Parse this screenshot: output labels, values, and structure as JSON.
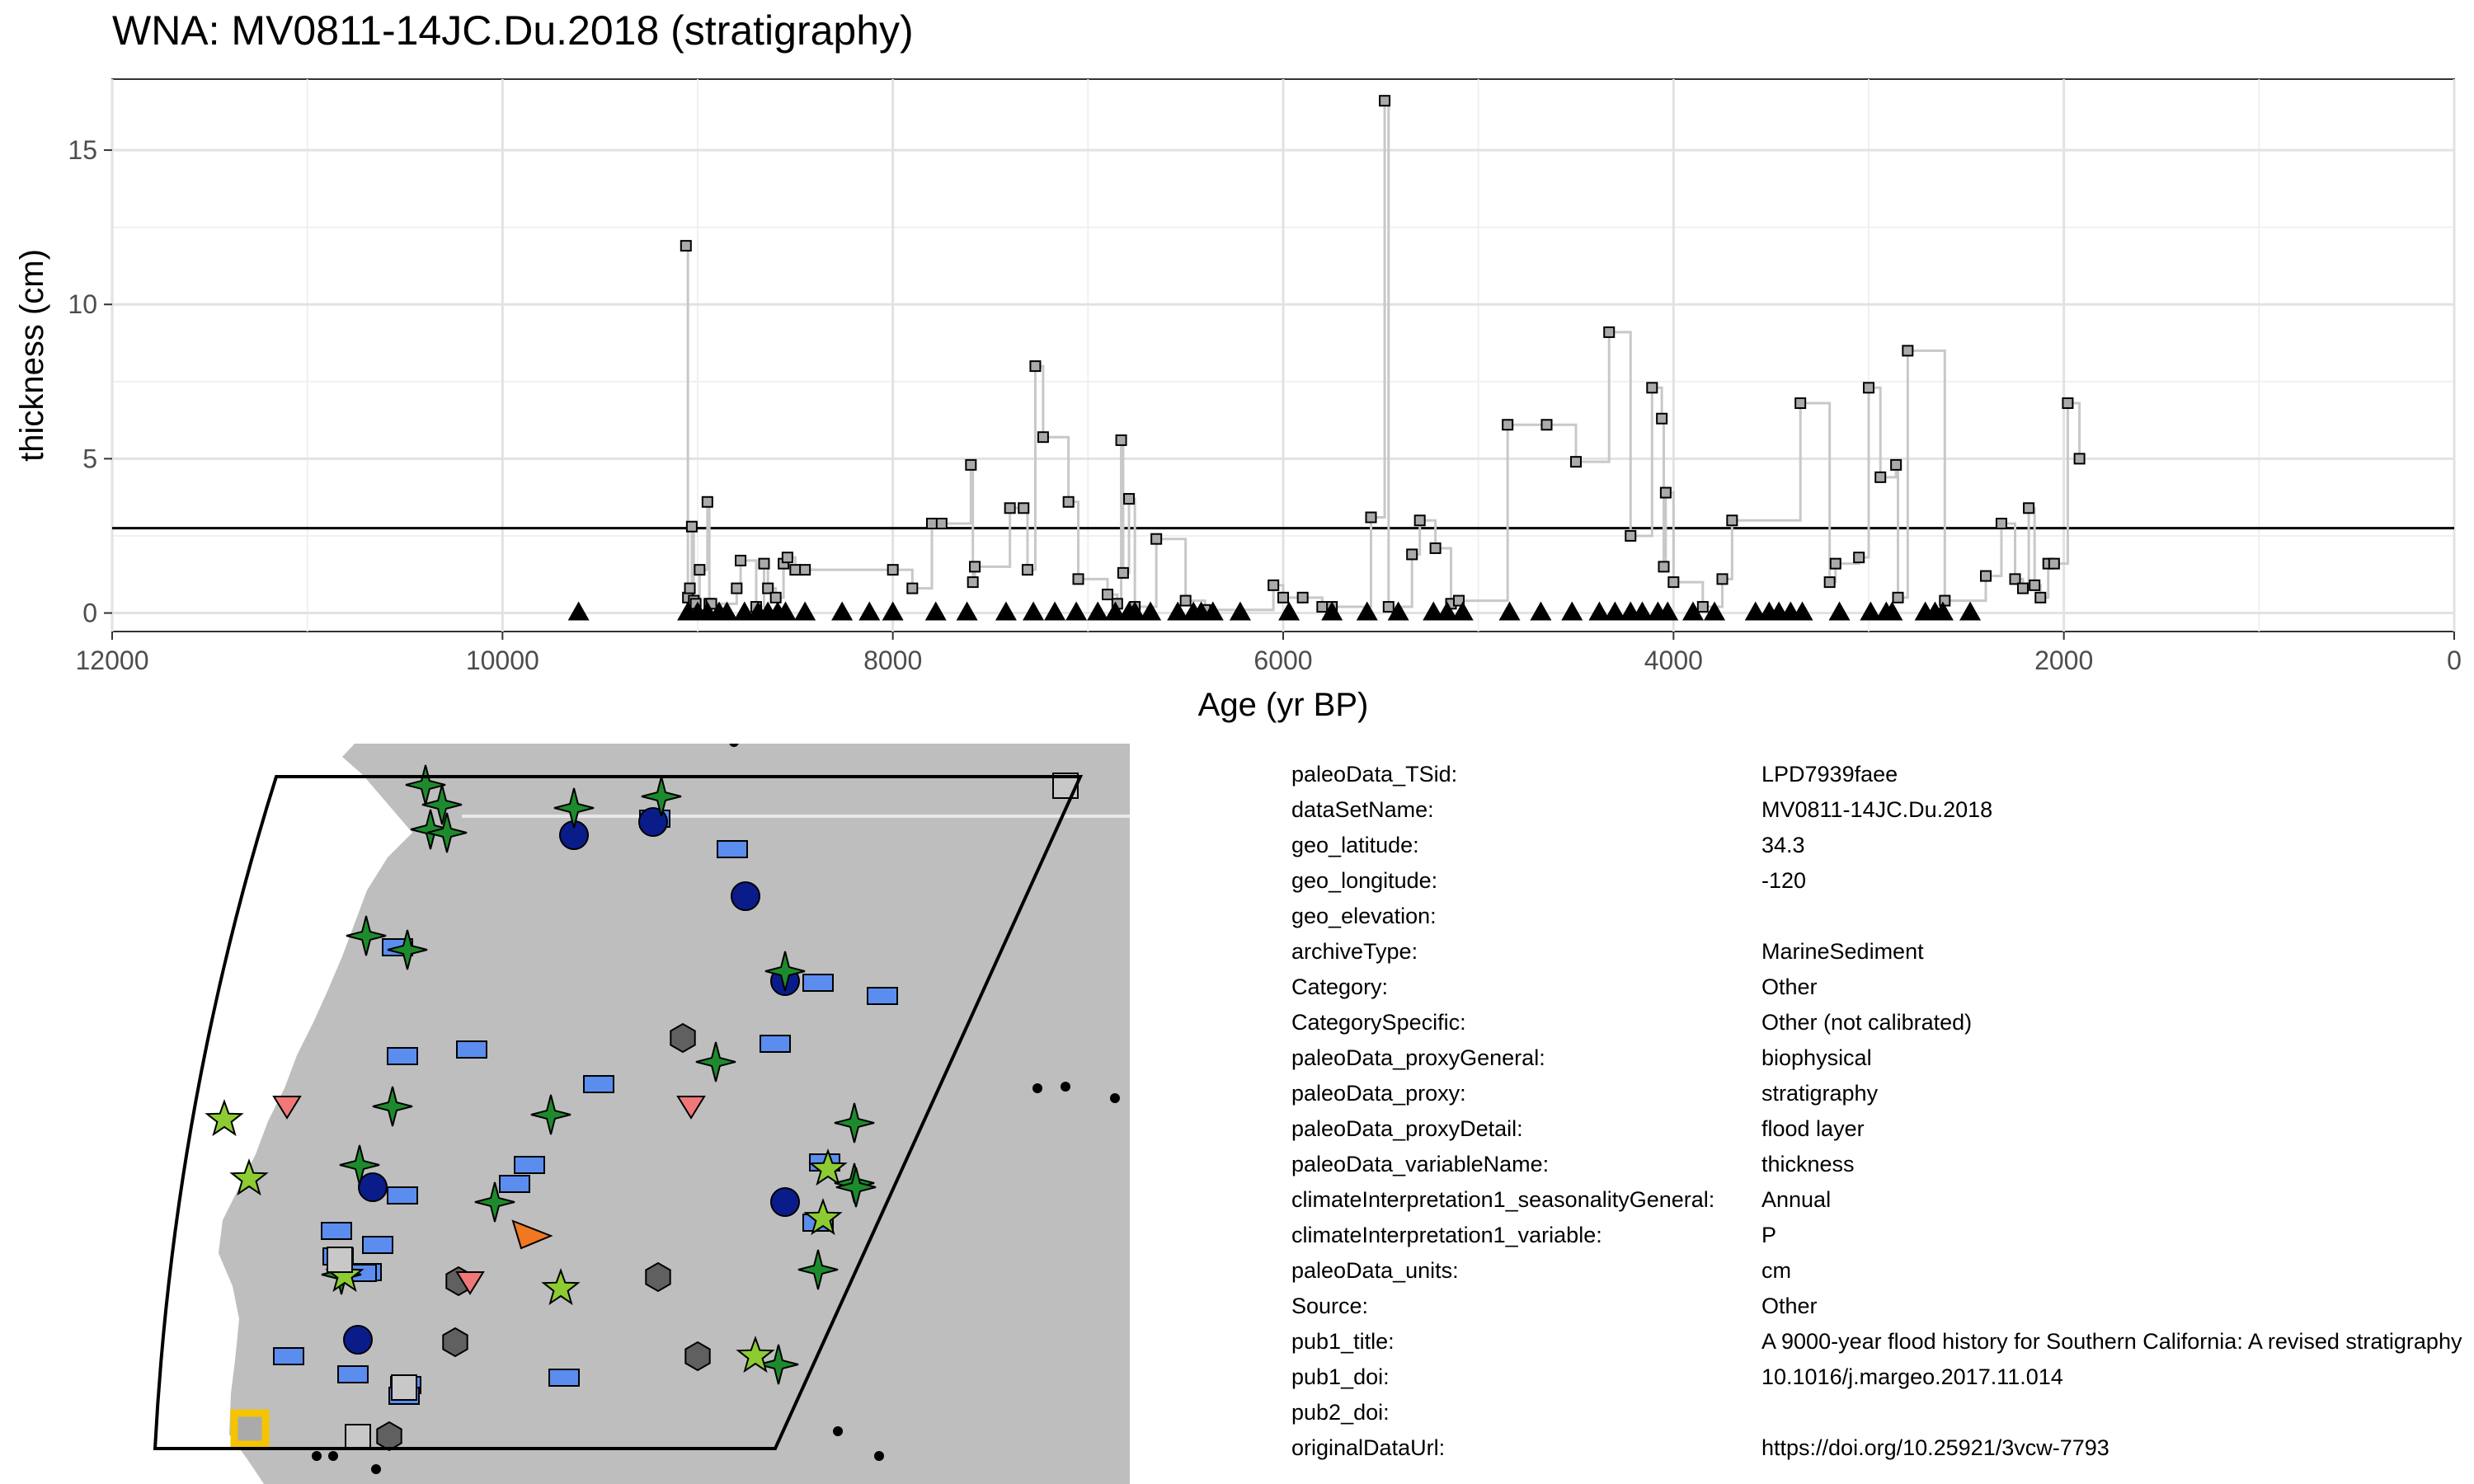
{
  "chart_data": {
    "type": "line",
    "title": "WNA: MV0811-14JC.Du.2018 (stratigraphy)",
    "xlabel": "Age (yr BP)",
    "ylabel": "thickness (cm)",
    "xlim": [
      12000,
      0
    ],
    "ylim": [
      -0.6,
      17.3
    ],
    "x_reversed": true,
    "xticks": [
      12000,
      10000,
      8000,
      6000,
      4000,
      2000,
      0
    ],
    "yticks": [
      0,
      5,
      10,
      15
    ],
    "grid": true,
    "reference_line_y": 2.75,
    "series": [
      {
        "style": "step",
        "x": [
          9060,
          9050,
          9040,
          9030,
          9020,
          9010,
          8990,
          8950,
          8940,
          8930,
          8800,
          8780,
          8700,
          8660,
          8640,
          8600,
          8560,
          8540,
          8500,
          8450,
          8000,
          7900,
          7800,
          7750,
          7600,
          7590,
          7580,
          7400,
          7330,
          7310,
          7270,
          7230,
          7100,
          7050,
          6900,
          6850,
          6830,
          6820,
          6790,
          6760,
          6650,
          6500,
          6400,
          6050,
          6000,
          5900,
          5800,
          5750,
          5550,
          5480,
          5460,
          5340,
          5300,
          5220,
          5140,
          5100,
          4850,
          4650,
          4500,
          4330,
          4220,
          4110,
          4060,
          4050,
          4040,
          4000,
          3850,
          3750,
          3700,
          3350,
          3200,
          3170,
          3050,
          3000,
          2940,
          2860,
          2850,
          2800,
          2610,
          2400,
          2320,
          2250,
          2210,
          2180,
          2150,
          2120,
          2080,
          2050,
          1980,
          1920
        ],
        "y": [
          11.9,
          0.5,
          0.8,
          2.8,
          0.4,
          0.3,
          1.4,
          3.6,
          0.3,
          0.3,
          0.8,
          1.7,
          0.2,
          1.6,
          0.8,
          0.5,
          1.6,
          1.8,
          1.4,
          1.4,
          1.4,
          0.8,
          2.9,
          2.9,
          4.8,
          1.0,
          1.5,
          3.4,
          3.4,
          1.4,
          8.0,
          5.7,
          3.6,
          1.1,
          0.6,
          0.3,
          5.6,
          1.3,
          3.7,
          0.2,
          2.4,
          0.4,
          0.1,
          0.9,
          0.5,
          0.5,
          0.2,
          0.2,
          3.1,
          16.6,
          0.2,
          1.9,
          3.0,
          2.1,
          0.3,
          0.4,
          6.1,
          6.1,
          4.9,
          9.1,
          2.5,
          7.3,
          6.3,
          1.5,
          3.9,
          1.0,
          0.2,
          1.1,
          3.0,
          6.8,
          1.0,
          1.6,
          1.8,
          7.3,
          4.4,
          4.8,
          0.5,
          8.5,
          0.4,
          1.2,
          2.9,
          1.1,
          0.8,
          3.4,
          0.9,
          0.5,
          1.6,
          1.6,
          6.8,
          5.0
        ]
      },
      {
        "style": "triangle-markers",
        "x": [
          9610,
          9050,
          9000,
          8950,
          8890,
          8850,
          8760,
          8690,
          8640,
          8590,
          8550,
          8450,
          8260,
          8120,
          8000,
          7780,
          7620,
          7420,
          7280,
          7170,
          7060,
          6950,
          6860,
          6790,
          6760,
          6680,
          6540,
          6460,
          6420,
          6360,
          6220,
          5970,
          5750,
          5570,
          5410,
          5230,
          5160,
          5080,
          4840,
          4680,
          4520,
          4380,
          4300,
          4220,
          4160,
          4080,
          4030,
          3900,
          3790,
          3580,
          3510,
          3460,
          3400,
          3340,
          3150,
          2990,
          2910,
          2880,
          2710,
          2660,
          2620,
          2480
        ]
      }
    ]
  },
  "map": {
    "background_color": "#c0c0c0",
    "land_color": "#bebebe",
    "water_color": "#ffffff",
    "series_colors": {
      "blue_rect": "#5b8def",
      "navy_circle": "#0a1c8a",
      "green_star4": "#1e8a2e",
      "lime_star5": "#8ccc32",
      "gray_hex": "#606060",
      "pink_tri": "#f07878",
      "orange_tri": "#f07820",
      "highlight": "#f5c400"
    }
  },
  "metadata": [
    {
      "key": "paleoData_TSid:",
      "value": "LPD7939faee"
    },
    {
      "key": "dataSetName:",
      "value": "MV0811-14JC.Du.2018"
    },
    {
      "key": "geo_latitude:",
      "value": "34.3"
    },
    {
      "key": "geo_longitude:",
      "value": "-120"
    },
    {
      "key": "geo_elevation:",
      "value": ""
    },
    {
      "key": "archiveType:",
      "value": "MarineSediment"
    },
    {
      "key": "Category:",
      "value": "Other"
    },
    {
      "key": "CategorySpecific:",
      "value": "Other (not calibrated)"
    },
    {
      "key": "paleoData_proxyGeneral:",
      "value": "biophysical"
    },
    {
      "key": "paleoData_proxy:",
      "value": "stratigraphy"
    },
    {
      "key": "paleoData_proxyDetail:",
      "value": "flood layer"
    },
    {
      "key": "paleoData_variableName:",
      "value": "thickness"
    },
    {
      "key": "climateInterpretation1_seasonalityGeneral:",
      "value": "Annual"
    },
    {
      "key": "climateInterpretation1_variable:",
      "value": "P"
    },
    {
      "key": "paleoData_units:",
      "value": "cm"
    },
    {
      "key": "Source:",
      "value": "Other"
    },
    {
      "key": "pub1_title:",
      "value": "A 9000-year flood history for Southern California: A revised stratigraphy"
    },
    {
      "key": "pub1_doi:",
      "value": "10.1016/j.margeo.2017.11.014"
    },
    {
      "key": "pub2_doi:",
      "value": ""
    },
    {
      "key": "originalDataUrl:",
      "value": "https://doi.org/10.25921/3vcw-7793"
    }
  ]
}
